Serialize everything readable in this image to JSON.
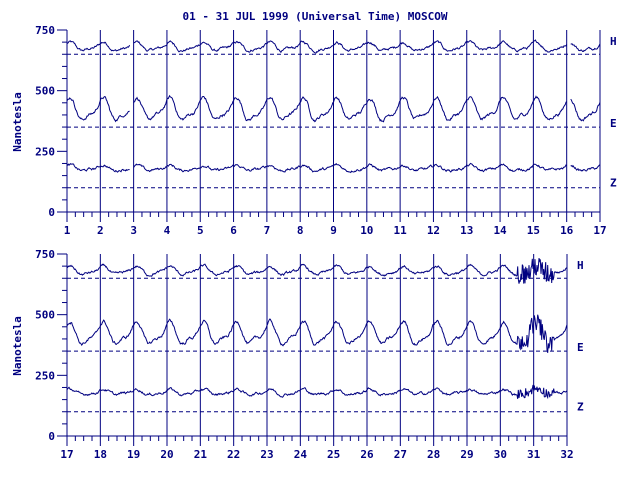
{
  "title": "01 - 31 JUL 1999 (Universal Time) MOSCOW",
  "colors": {
    "ink": "#000080",
    "background": "#ffffff"
  },
  "chart_data": [
    {
      "type": "line",
      "ylabel": "Nanotesla",
      "xlabel": "",
      "xlim": [
        1,
        17
      ],
      "ylim": [
        0,
        750
      ],
      "yticks": [
        "0",
        "250",
        "500",
        "750"
      ],
      "xticks": [
        "1",
        "2",
        "3",
        "4",
        "5",
        "6",
        "7",
        "8",
        "9",
        "10",
        "11",
        "12",
        "13",
        "14",
        "15",
        "16",
        "17"
      ],
      "grid": "vertical lines at each day boundary",
      "baselines": [
        {
          "component": "H",
          "value": 650
        },
        {
          "component": "E",
          "value": 350
        },
        {
          "component": "Z",
          "value": 100
        }
      ],
      "series": [
        {
          "name": "H",
          "mean": 680
        },
        {
          "name": "E",
          "mean": 420
        },
        {
          "name": "Z",
          "mean": 180
        }
      ],
      "gaps": [
        [
          2.9,
          3.0
        ],
        [
          16.0,
          16.1
        ]
      ]
    },
    {
      "type": "line",
      "ylabel": "Nanotesla",
      "xlabel": "",
      "xlim": [
        17,
        32
      ],
      "ylim": [
        0,
        750
      ],
      "yticks": [
        "0",
        "250",
        "500",
        "750"
      ],
      "xticks": [
        "17",
        "18",
        "19",
        "20",
        "21",
        "22",
        "23",
        "24",
        "25",
        "26",
        "27",
        "28",
        "29",
        "30",
        "31",
        "32"
      ],
      "grid": "vertical lines at each day boundary",
      "baselines": [
        {
          "component": "H",
          "value": 650
        },
        {
          "component": "E",
          "value": 350
        },
        {
          "component": "Z",
          "value": 100
        }
      ],
      "series": [
        {
          "name": "H",
          "mean": 680
        },
        {
          "name": "E",
          "mean": 420
        },
        {
          "name": "Z",
          "mean": 180
        }
      ],
      "gaps": []
    }
  ]
}
